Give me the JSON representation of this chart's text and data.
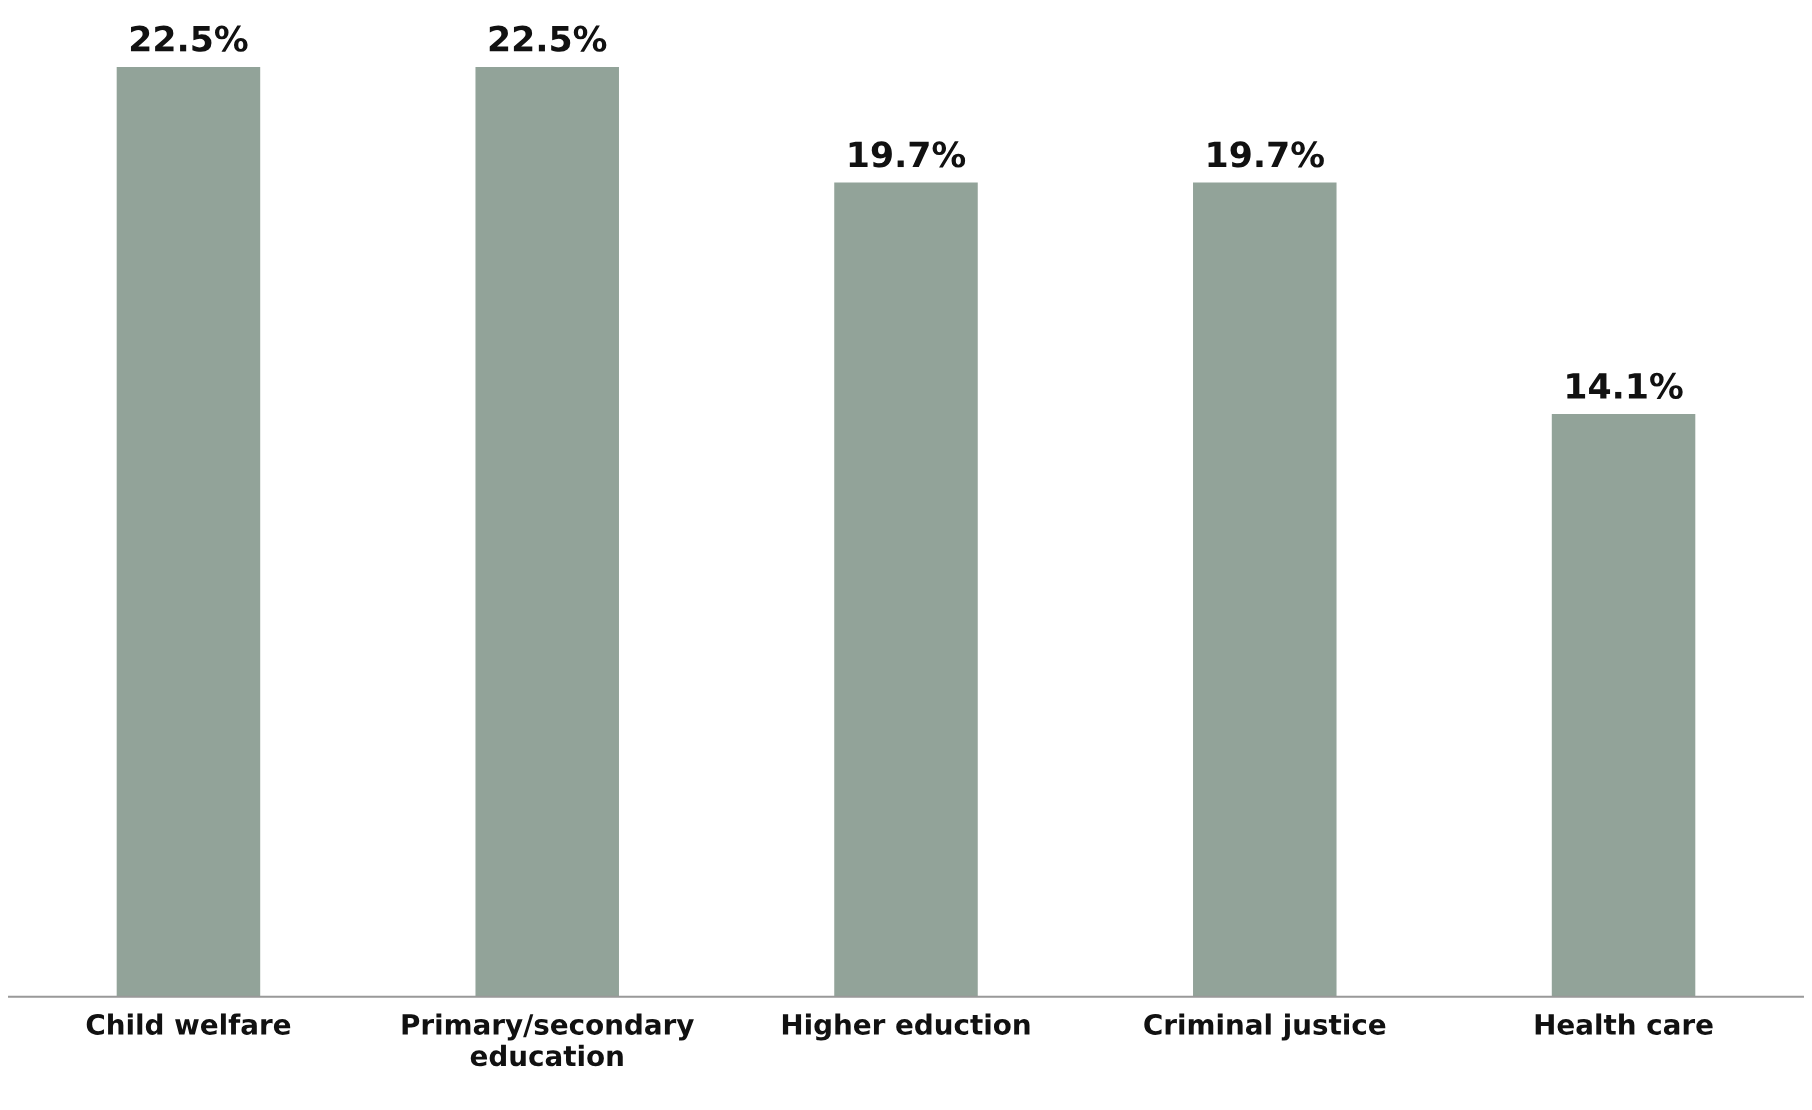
{
  "chart_data": {
    "type": "bar",
    "categories": [
      "Child welfare",
      "Primary/secondary\neducation",
      "Higher eduction",
      "Criminal justice",
      "Health care"
    ],
    "values": [
      22.5,
      22.5,
      19.7,
      19.7,
      14.1
    ],
    "value_labels": [
      "22.5%",
      "22.5%",
      "19.7%",
      "19.7%",
      "14.1%"
    ],
    "color": "#92a399",
    "tick_labels": "x"
  }
}
